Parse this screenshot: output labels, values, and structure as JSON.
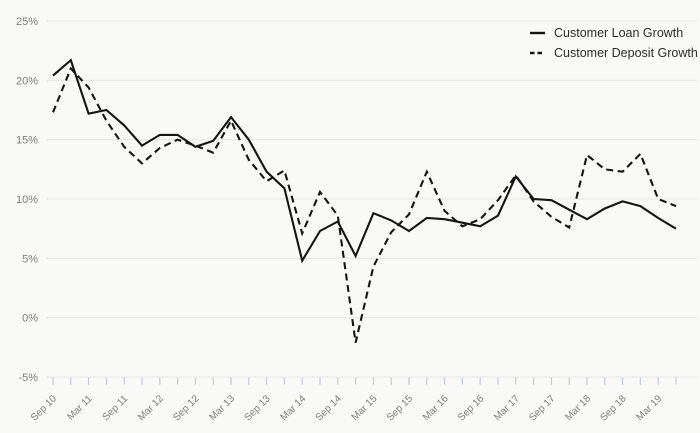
{
  "chart_data": {
    "type": "line",
    "periods": [
      "Sep 10",
      "Dec 10",
      "Mar 11",
      "Jun 11",
      "Sep 11",
      "Dec 11",
      "Mar 12",
      "Jun 12",
      "Sep 12",
      "Dec 12",
      "Mar 13",
      "Jun 13",
      "Sep 13",
      "Dec 13",
      "Mar 14",
      "Jun 14",
      "Sep 14",
      "Dec 14",
      "Mar 15",
      "Jun 15",
      "Sep 15",
      "Dec 15",
      "Mar 16",
      "Jun 16",
      "Sep 16",
      "Dec 16",
      "Mar 17",
      "Jun 17",
      "Sep 17",
      "Dec 17",
      "Mar 18",
      "Jun 18",
      "Sep 18",
      "Dec 18",
      "Mar 19",
      "Jun 19"
    ],
    "x_tick_labels": [
      "Sep 10",
      "Mar 11",
      "Sep 11",
      "Mar 12",
      "Sep 12",
      "Mar 13",
      "Sep 13",
      "Mar 14",
      "Sep 14",
      "Mar 15",
      "Sep 15",
      "Mar 16",
      "Sep 16",
      "Mar 17",
      "Sep 17",
      "Mar 18",
      "Sep 18",
      "Mar 19"
    ],
    "series": [
      {
        "name": "Customer Loan Growth",
        "style": "solid",
        "values": [
          20.4,
          21.7,
          17.2,
          17.5,
          16.2,
          14.5,
          15.4,
          15.4,
          14.4,
          14.9,
          16.9,
          15.0,
          12.3,
          10.9,
          4.8,
          7.3,
          8.1,
          5.2,
          8.8,
          8.2,
          7.3,
          8.4,
          8.3,
          8.0,
          7.7,
          8.6,
          11.9,
          10.0,
          9.9,
          9.1,
          8.3,
          9.2,
          9.8,
          9.4,
          8.4,
          7.5
        ]
      },
      {
        "name": "Customer Deposit Growth",
        "style": "dashed",
        "values": [
          17.3,
          21.0,
          19.4,
          16.6,
          14.4,
          13.0,
          14.3,
          15.0,
          14.5,
          13.9,
          16.6,
          13.3,
          11.5,
          12.4,
          7.1,
          10.6,
          8.6,
          -2.1,
          4.3,
          7.2,
          8.7,
          12.3,
          9.0,
          7.7,
          8.3,
          9.9,
          12.0,
          9.8,
          8.5,
          7.6,
          13.7,
          12.5,
          12.3,
          13.8,
          10.0,
          9.4
        ]
      }
    ],
    "ylim": [
      -5,
      25
    ],
    "y_tick_values": [
      -5,
      0,
      5,
      10,
      15,
      20,
      25
    ],
    "y_tick_labels": [
      "-5%",
      "0%",
      "5%",
      "10%",
      "15%",
      "20%",
      "25%"
    ],
    "grid": "horizontal",
    "legend_position": "top-right",
    "colors": {
      "line": "#141414",
      "grid": "#e5e5e5",
      "tick": "#c4cdde",
      "axis_label": "#7d7d7d",
      "legend_text": "#2d2d2d",
      "background": "#f9f9f8"
    }
  },
  "legend": {
    "items": [
      {
        "label": "Customer Loan Growth"
      },
      {
        "label": "Customer Deposit Growth"
      }
    ]
  }
}
